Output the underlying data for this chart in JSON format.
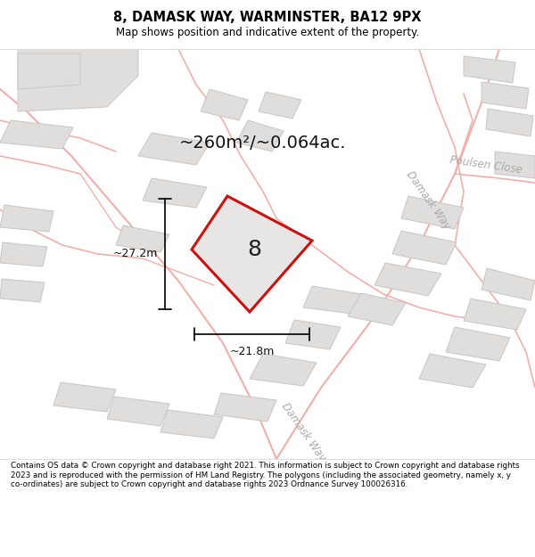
{
  "title": "8, DAMASK WAY, WARMINSTER, BA12 9PX",
  "subtitle": "Map shows position and indicative extent of the property.",
  "area_text": "~260m²/~0.064ac.",
  "dim_width": "~21.8m",
  "dim_height": "~27.2m",
  "property_label": "8",
  "footer": "Contains OS data © Crown copyright and database right 2021. This information is subject to Crown copyright and database rights 2023 and is reproduced with the permission of HM Land Registry. The polygons (including the associated geometry, namely x, y co-ordinates) are subject to Crown copyright and database rights 2023 Ordnance Survey 100026316.",
  "bg_color": "#ffffff",
  "map_bg": "#f8f8f8",
  "plot_fill": "#e8e6e4",
  "plot_stroke": "#cc1111",
  "road_color": "#f0b0aa",
  "building_fill": "#e0dedd",
  "building_stroke": "#c8c6c4",
  "road_label_color": "#aaaaaa",
  "dim_color": "#111111",
  "street_name1": "Damask Way",
  "street_name2": "Poulsen Close"
}
